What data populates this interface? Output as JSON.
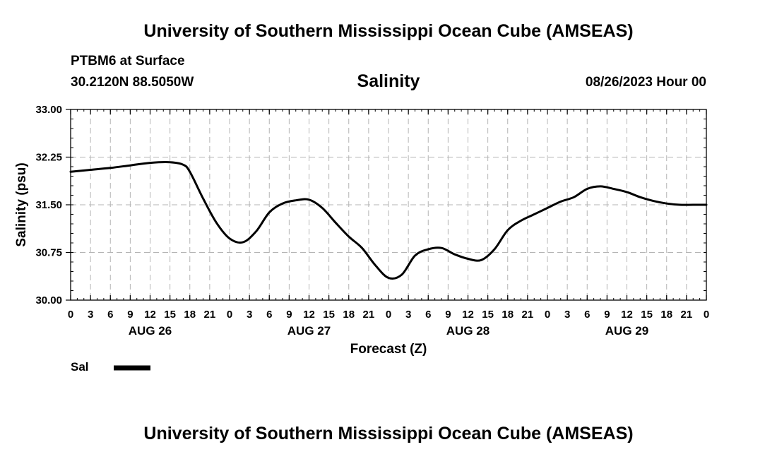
{
  "header": {
    "title": "University of Southern Mississippi Ocean Cube (AMSEAS)",
    "station": "PTBM6 at Surface",
    "coords": "30.2120N  88.5050W",
    "date": "08/26/2023 Hour 00"
  },
  "footer": {
    "title": "University of Southern Mississippi Ocean Cube (AMSEAS)"
  },
  "chart_data": {
    "type": "line",
    "title": "Salinity",
    "xlabel": "Forecast (Z)",
    "ylabel": "Salinity (psu)",
    "ylim": [
      30.0,
      33.0
    ],
    "xlim": [
      0,
      96
    ],
    "yticks": [
      "30.00",
      "30.75",
      "31.50",
      "32.25",
      "33.00"
    ],
    "xtick_labels": [
      "0",
      "3",
      "6",
      "9",
      "12",
      "15",
      "18",
      "21",
      "0",
      "3",
      "6",
      "9",
      "12",
      "15",
      "18",
      "21",
      "0",
      "3",
      "6",
      "9",
      "12",
      "15",
      "18",
      "21",
      "0",
      "3",
      "6",
      "9",
      "12",
      "15",
      "18",
      "21",
      "0"
    ],
    "day_labels": [
      "AUG 26",
      "AUG 27",
      "AUG 28",
      "AUG 29"
    ],
    "grid": true,
    "legend": {
      "label": "Sal",
      "placement": "bottom-left"
    },
    "series": [
      {
        "name": "Sal",
        "color": "#000000",
        "x": [
          0,
          3,
          6,
          9,
          12,
          15,
          17,
          18,
          20,
          22,
          24,
          26,
          28,
          30,
          32,
          34,
          36,
          38,
          40,
          42,
          44,
          46,
          48,
          50,
          52,
          54,
          56,
          58,
          60,
          62,
          64,
          66,
          68,
          70,
          72,
          74,
          76,
          78,
          80,
          82,
          84,
          86,
          88,
          90,
          92,
          94,
          96
        ],
        "y": [
          32.02,
          32.05,
          32.08,
          32.12,
          32.16,
          32.17,
          32.13,
          32.02,
          31.6,
          31.22,
          30.97,
          30.91,
          31.08,
          31.38,
          31.52,
          31.57,
          31.58,
          31.45,
          31.22,
          31.0,
          30.82,
          30.55,
          30.35,
          30.4,
          30.7,
          30.8,
          30.82,
          30.72,
          30.65,
          30.63,
          30.8,
          31.1,
          31.25,
          31.35,
          31.45,
          31.55,
          31.62,
          31.75,
          31.79,
          31.75,
          31.7,
          31.62,
          31.56,
          31.52,
          31.5,
          31.5,
          31.5
        ]
      }
    ]
  }
}
